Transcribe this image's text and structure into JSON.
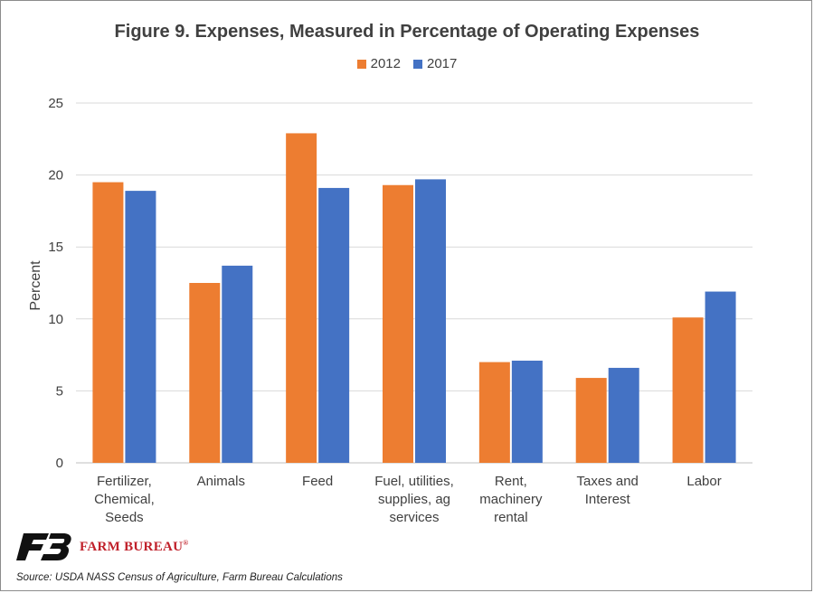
{
  "chart_data": {
    "type": "bar",
    "title": "Figure 9. Expenses, Measured in Percentage of Operating Expenses",
    "ylabel": "Percent",
    "xlabel": "",
    "ylim": [
      0,
      25
    ],
    "yticks": [
      0,
      5,
      10,
      15,
      20,
      25
    ],
    "grid": true,
    "legend_position": "top-center",
    "categories": [
      [
        "Fertilizer,",
        "Chemical,",
        "Seeds"
      ],
      [
        "Animals"
      ],
      [
        "Feed"
      ],
      [
        "Fuel, utilities,",
        "supplies, ag",
        "services"
      ],
      [
        "Rent,",
        "machinery",
        "rental"
      ],
      [
        "Taxes and",
        "Interest"
      ],
      [
        "Labor"
      ]
    ],
    "series": [
      {
        "name": "2012",
        "color": "#ED7D31",
        "values": [
          19.5,
          12.5,
          22.9,
          19.3,
          7.0,
          5.9,
          10.1
        ]
      },
      {
        "name": "2017",
        "color": "#4472C4",
        "values": [
          18.9,
          13.7,
          19.1,
          19.7,
          7.1,
          6.6,
          11.9
        ]
      }
    ]
  },
  "branding": {
    "logo_text": "FARM BUREAU",
    "logo_mark": "®",
    "logo_color": "#C0202A"
  },
  "source": "Source: USDA NASS Census of Agriculture, Farm Bureau Calculations"
}
